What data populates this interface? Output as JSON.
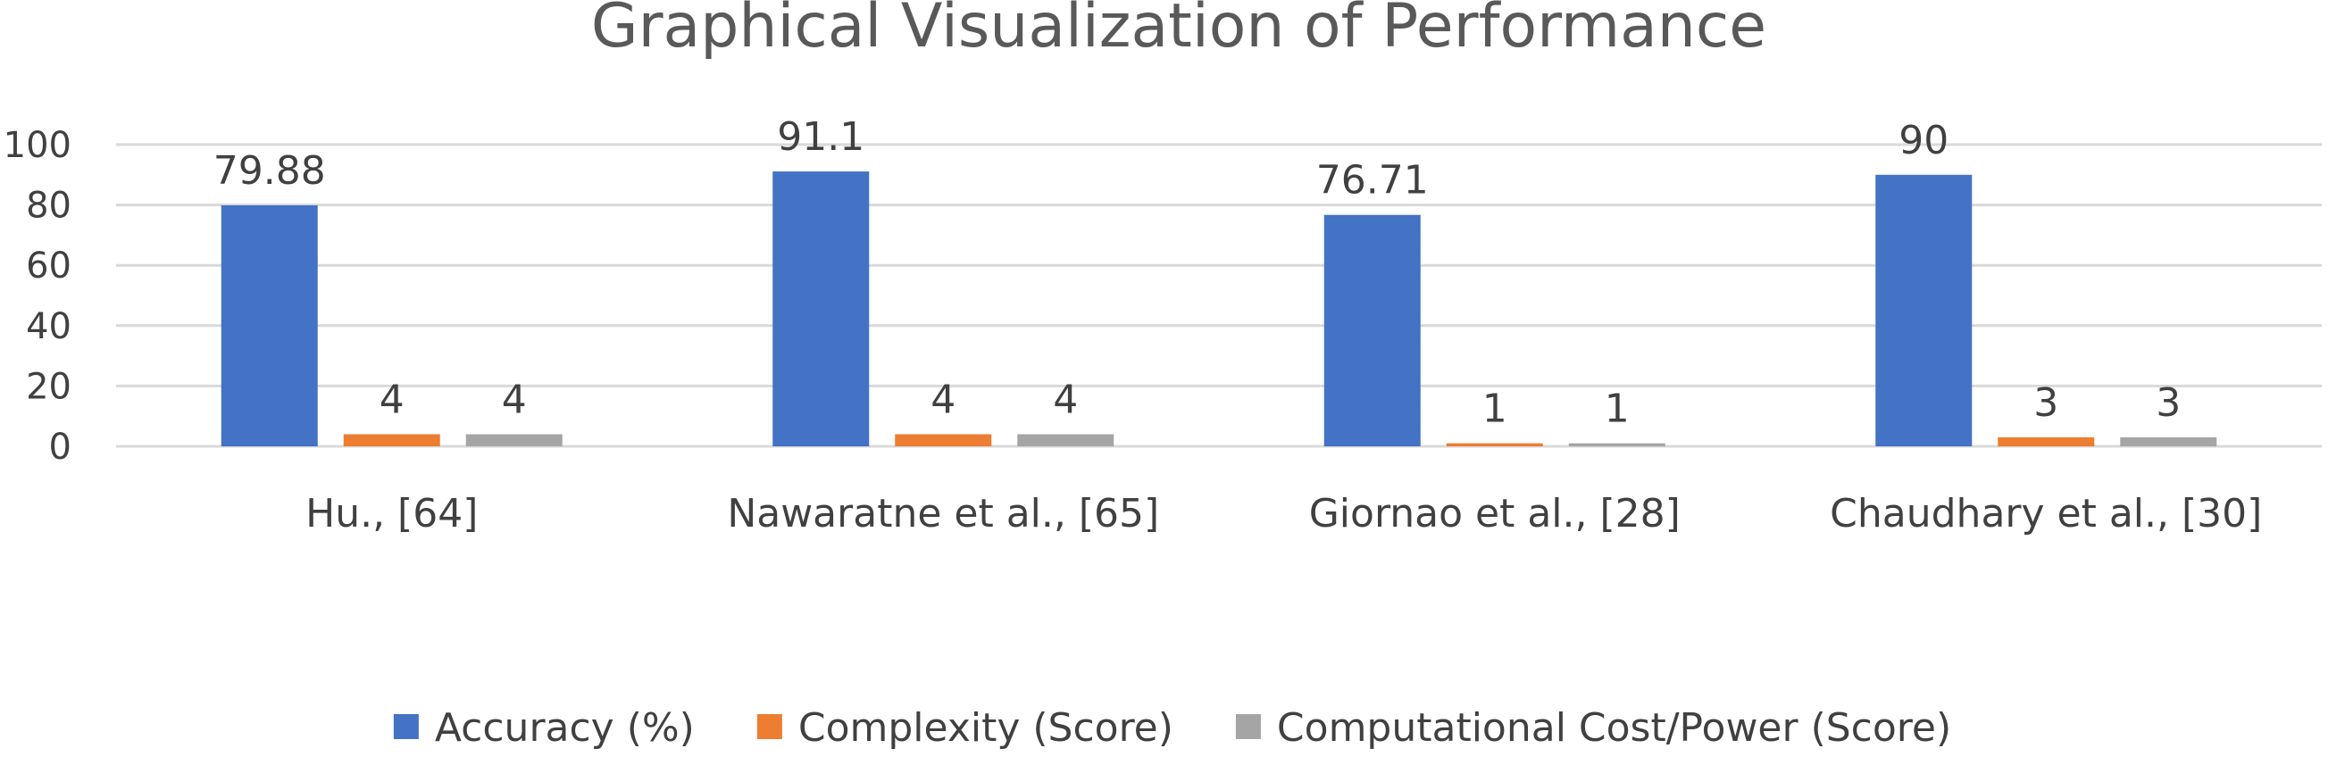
{
  "chart_data": {
    "type": "bar",
    "title": "Graphical Visualization of Performance",
    "categories": [
      "Hu., [64]",
      "Nawaratne et al., [65]",
      "Giornao et al., [28]",
      "Chaudhary et al., [30]"
    ],
    "series": [
      {
        "name": "Accuracy (%)",
        "values": [
          79.88,
          91.1,
          76.71,
          90
        ],
        "labels": [
          "79.88",
          "91.1",
          "76.71",
          "90"
        ],
        "color": "#4472C4"
      },
      {
        "name": "Complexity (Score)",
        "values": [
          4,
          4,
          1,
          3
        ],
        "labels": [
          "4",
          "4",
          "1",
          "3"
        ],
        "color": "#ED7D31"
      },
      {
        "name": "Computational Cost/Power (Score)",
        "values": [
          4,
          4,
          1,
          3
        ],
        "labels": [
          "4",
          "4",
          "1",
          "3"
        ],
        "color": "#A5A5A5"
      }
    ],
    "yticks": [
      "0",
      "20",
      "40",
      "60",
      "80",
      "100"
    ],
    "ylim": [
      0,
      100
    ],
    "grid": true,
    "legend": "bottom"
  }
}
